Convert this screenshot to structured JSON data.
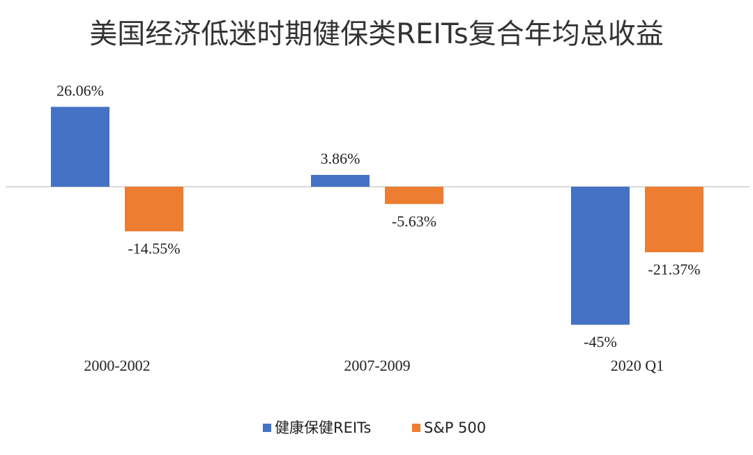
{
  "chart_data": {
    "type": "bar",
    "title": "美国经济低迷时期健保类REITs复合年均总收益",
    "categories": [
      "2000-2002",
      "2007-2009",
      "2020 Q1"
    ],
    "series": [
      {
        "name": "健康保健REITs",
        "color": "#4472C4",
        "values": [
          26.06,
          3.86,
          -45
        ],
        "labels": [
          "26.06%",
          "3.86%",
          "-45%"
        ]
      },
      {
        "name": "S&P 500",
        "color": "#ED7D31",
        "values": [
          -14.55,
          -5.63,
          -21.37
        ],
        "labels": [
          "-14.55%",
          "-5.63%",
          "-21.37%"
        ]
      }
    ],
    "xlabel": "",
    "ylabel": "",
    "ylim": [
      -45,
      26.06
    ],
    "grid": false,
    "legend_position": "bottom",
    "axis_color": "#D9D9D9"
  }
}
